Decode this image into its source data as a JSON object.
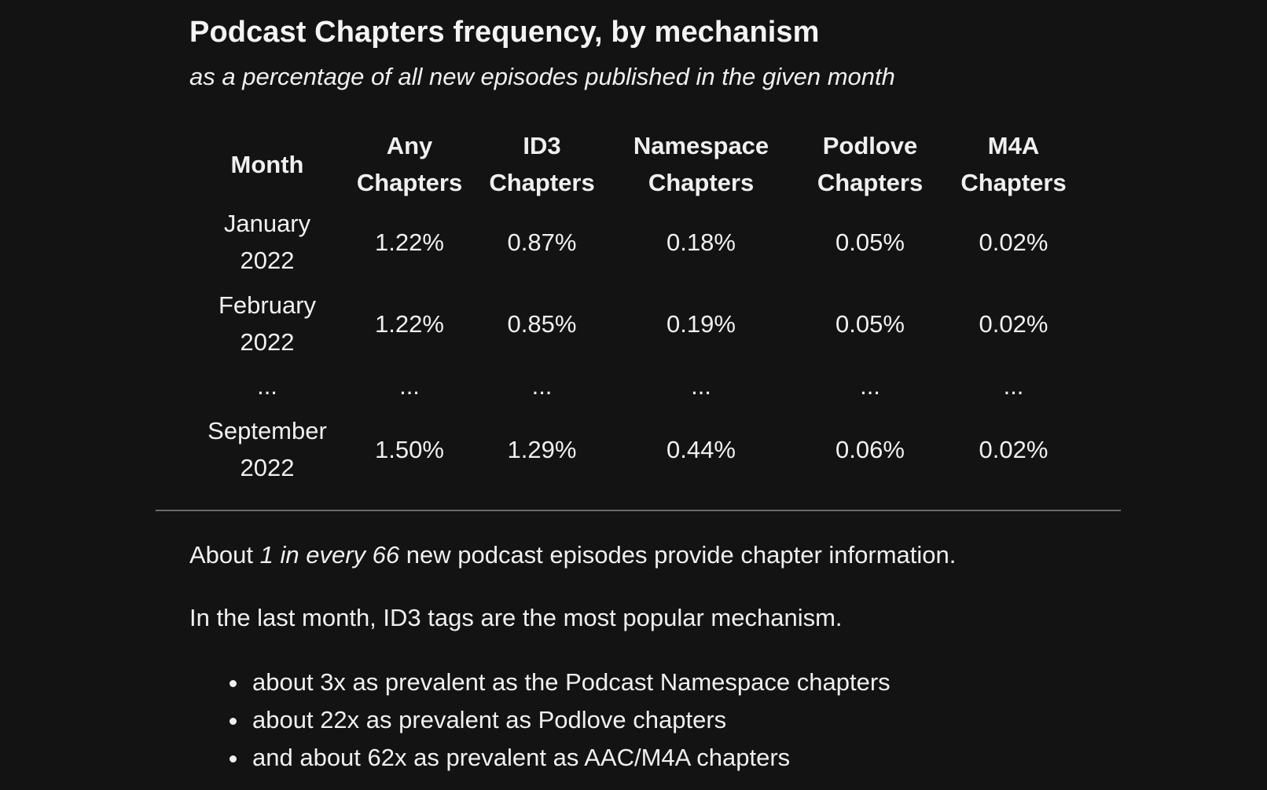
{
  "heading": {
    "title": "Podcast Chapters frequency, by mechanism",
    "subtitle": "as a percentage of all new episodes published in the given month"
  },
  "table": {
    "columns": [
      {
        "line1": "Month",
        "line2": ""
      },
      {
        "line1": "Any",
        "line2": "Chapters"
      },
      {
        "line1": "ID3",
        "line2": "Chapters"
      },
      {
        "line1": "Namespace",
        "line2": "Chapters"
      },
      {
        "line1": "Podlove",
        "line2": "Chapters"
      },
      {
        "line1": "M4A",
        "line2": "Chapters"
      }
    ],
    "rows": [
      {
        "month_line1": "January",
        "month_line2": "2022",
        "any": "1.22%",
        "id3": "0.87%",
        "namespace": "0.18%",
        "podlove": "0.05%",
        "m4a": "0.02%"
      },
      {
        "month_line1": "February",
        "month_line2": "2022",
        "any": "1.22%",
        "id3": "0.85%",
        "namespace": "0.19%",
        "podlove": "0.05%",
        "m4a": "0.02%"
      },
      {
        "month_line1": "...",
        "month_line2": "",
        "any": "...",
        "id3": "...",
        "namespace": "...",
        "podlove": "...",
        "m4a": "..."
      },
      {
        "month_line1": "September",
        "month_line2": "2022",
        "any": "1.50%",
        "id3": "1.29%",
        "namespace": "0.44%",
        "podlove": "0.06%",
        "m4a": "0.02%"
      }
    ]
  },
  "summary": {
    "p1_before": "About ",
    "p1_emphasis": "1 in every 66",
    "p1_after": " new podcast episodes provide chapter information.",
    "p2": "In the last month, ID3 tags are the most popular mechanism.",
    "bullets": [
      "about 3x as prevalent as the Podcast Namespace chapters",
      "about 22x as prevalent as Podlove chapters",
      "and about 62x as prevalent as AAC/M4A chapters"
    ]
  }
}
